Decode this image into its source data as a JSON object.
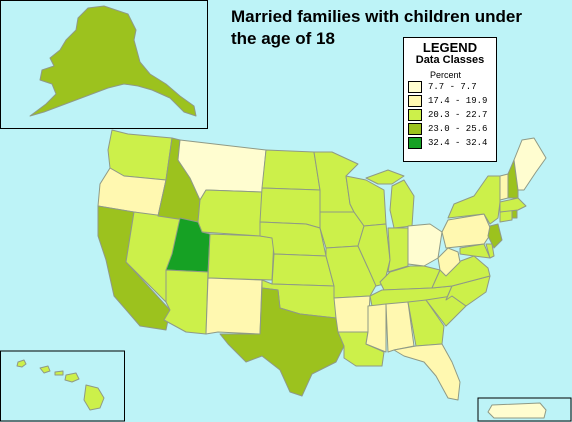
{
  "title_line1": "Married families with children under",
  "title_line2": "the age of 18",
  "legend": {
    "title": "LEGEND",
    "subtitle": "Data Classes",
    "unit": "Percent",
    "classes": [
      {
        "label": "7.7 - 7.7",
        "color": "#fffdd0"
      },
      {
        "label": "17.4 - 19.9",
        "color": "#fff8b0"
      },
      {
        "label": "20.3 - 22.7",
        "color": "#ccf04a"
      },
      {
        "label": "23.0 - 25.6",
        "color": "#9cc21e"
      },
      {
        "label": "32.4 - 32.4",
        "color": "#16a124"
      }
    ]
  },
  "colors": {
    "ocean": "#bdf3f7",
    "border": "#8f9a86",
    "frame": "#000000"
  }
}
